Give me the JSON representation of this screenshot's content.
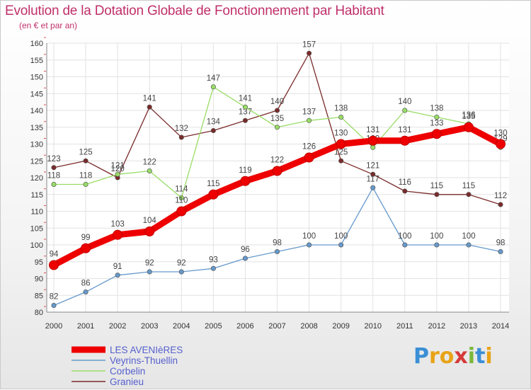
{
  "header": {
    "title": "Evolution de la Dotation Globale de Fonctionnement par Habitant",
    "subtitle": "(en € et par an)"
  },
  "logo": {
    "text": "Proxiti",
    "letters": [
      "P",
      "r",
      "o",
      "x",
      "i",
      "t",
      "i"
    ],
    "colors": [
      "#3a8fd6",
      "#e8a317",
      "#e8a317",
      "#d63a3a",
      "#7ab83a",
      "#3a8fd6",
      "#e8a317"
    ]
  },
  "chart_data": {
    "type": "line",
    "title": "Evolution de la Dotation Globale de Fonctionnement par Habitant",
    "subtitle": "(en € et par an)",
    "xlabel": "",
    "ylabel": "",
    "x": [
      2000,
      2001,
      2002,
      2003,
      2004,
      2005,
      2006,
      2007,
      2008,
      2009,
      2010,
      2011,
      2012,
      2013,
      2014
    ],
    "ylim": [
      80,
      160
    ],
    "yticks": [
      80,
      85,
      90,
      95,
      100,
      105,
      110,
      115,
      120,
      125,
      130,
      135,
      140,
      145,
      150,
      155,
      160
    ],
    "grid": true,
    "legend_position": "bottom-left",
    "series": [
      {
        "name": "LES AVENIèRES",
        "color": "#ee0000",
        "values": [
          94,
          99,
          103,
          104,
          110,
          115,
          119,
          122,
          126,
          130,
          131,
          131,
          133,
          135,
          130
        ]
      },
      {
        "name": "Veyrins-Thuellin",
        "color": "#6699cc",
        "values": [
          82,
          86,
          91,
          92,
          92,
          93,
          96,
          98,
          100,
          100,
          117,
          100,
          100,
          100,
          98
        ]
      },
      {
        "name": "Corbelin",
        "color": "#99dd66",
        "values": [
          118,
          118,
          121,
          122,
          114,
          147,
          141,
          135,
          137,
          138,
          129,
          140,
          138,
          136,
          129
        ]
      },
      {
        "name": "Granieu",
        "color": "#7a2a2a",
        "values": [
          123,
          125,
          120,
          141,
          132,
          134,
          137,
          140,
          157,
          125,
          121,
          116,
          115,
          115,
          112
        ]
      }
    ]
  }
}
